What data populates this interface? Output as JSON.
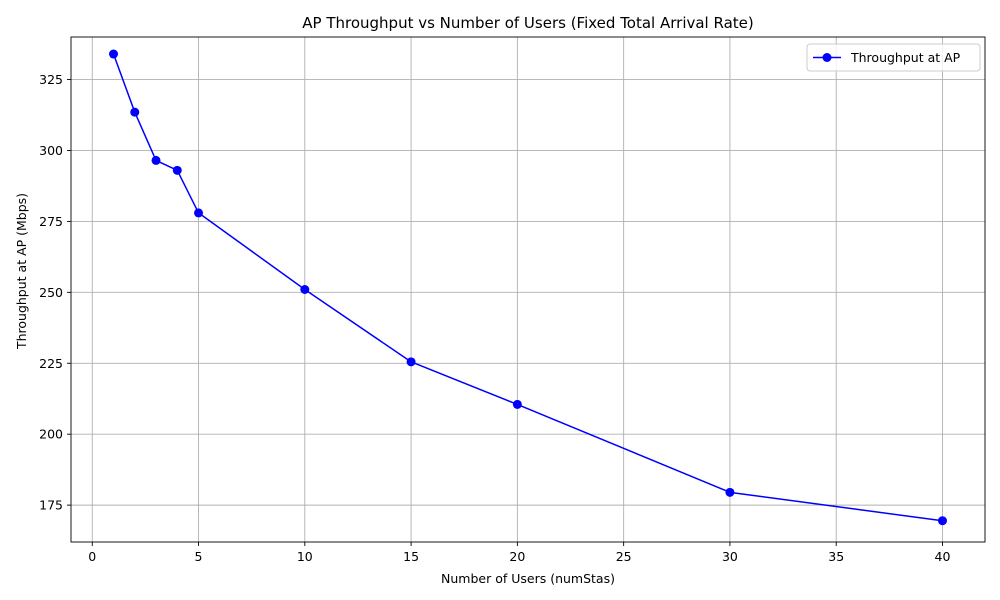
{
  "chart_data": {
    "type": "line",
    "title": "AP Throughput vs Number of Users (Fixed Total Arrival Rate)",
    "xlabel": "Number of Users (numStas)",
    "ylabel": "Throughput at AP (Mbps)",
    "xlim": [
      -1,
      42
    ],
    "ylim": [
      162,
      340
    ],
    "xticks": [
      0,
      5,
      10,
      15,
      20,
      25,
      30,
      35,
      40
    ],
    "yticks": [
      175,
      200,
      225,
      250,
      275,
      300,
      325
    ],
    "grid": true,
    "legend_position": "top-right",
    "series": [
      {
        "name": "Throughput at AP",
        "color": "#0000ff",
        "marker": "circle",
        "x": [
          1,
          2,
          3,
          4,
          5,
          10,
          15,
          20,
          30,
          40
        ],
        "y": [
          334,
          313.5,
          296.5,
          293,
          278,
          251,
          225.5,
          210.5,
          179.5,
          169.5
        ]
      }
    ]
  }
}
